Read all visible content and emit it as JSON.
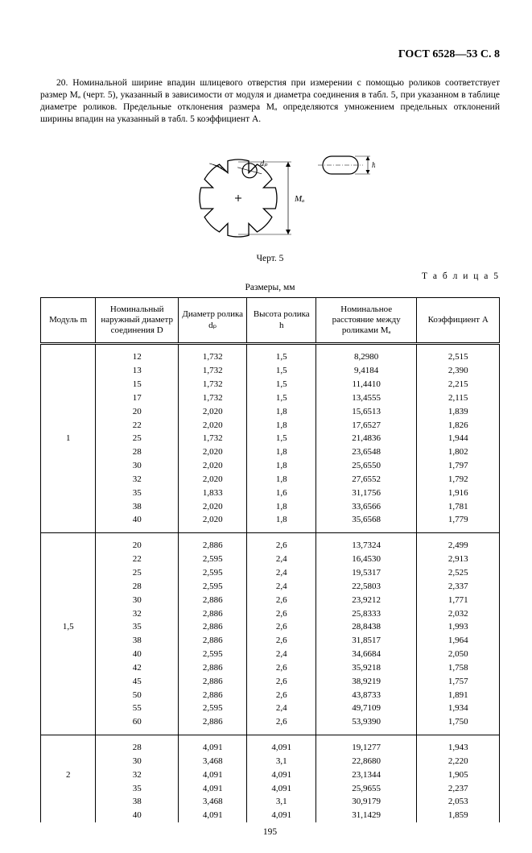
{
  "header": "ГОСТ 6528—53 С. 8",
  "paragraph": "20. Номинальной ширине впадин шлицевого отверстия при измерении с помощью роликов соответствует размер Mₐ (черт. 5), указанный в зависимости от модуля и диаметра соединения в табл. 5, при указанном в таблице диаметре роликов. Предельные отклонения размера Mₐ определяются умножением предельных отклонений ширины впадин на указанный в табл. 5 коэффициент A.",
  "fig_caption": "Черт. 5",
  "table_label": "Т а б л и ц а  5",
  "dim_label": "Размеры, мм",
  "page_number": "195",
  "table": {
    "columns": [
      "Модуль m",
      "Номинальный наружный диаметр соединения D",
      "Диаметр ролика dₚ",
      "Высота ролика h",
      "Номинальное расстояние между роликами Mₐ",
      "Коэффициент A"
    ],
    "groups": [
      {
        "m": "1",
        "rows": [
          [
            "12",
            "1,732",
            "1,5",
            "8,2980",
            "2,515"
          ],
          [
            "13",
            "1,732",
            "1,5",
            "9,4184",
            "2,390"
          ],
          [
            "15",
            "1,732",
            "1,5",
            "11,4410",
            "2,215"
          ],
          [
            "17",
            "1,732",
            "1,5",
            "13,4555",
            "2,115"
          ],
          [
            "20",
            "2,020",
            "1,8",
            "15,6513",
            "1,839"
          ],
          [
            "22",
            "2,020",
            "1,8",
            "17,6527",
            "1,826"
          ],
          [
            "25",
            "1,732",
            "1,5",
            "21,4836",
            "1,944"
          ],
          [
            "28",
            "2,020",
            "1,8",
            "23,6548",
            "1,802"
          ],
          [
            "30",
            "2,020",
            "1,8",
            "25,6550",
            "1,797"
          ],
          [
            "32",
            "2,020",
            "1,8",
            "27,6552",
            "1,792"
          ],
          [
            "35",
            "1,833",
            "1,6",
            "31,1756",
            "1,916"
          ],
          [
            "38",
            "2,020",
            "1,8",
            "33,6566",
            "1,781"
          ],
          [
            "40",
            "2,020",
            "1,8",
            "35,6568",
            "1,779"
          ]
        ]
      },
      {
        "m": "1,5",
        "rows": [
          [
            "20",
            "2,886",
            "2,6",
            "13,7324",
            "2,499"
          ],
          [
            "22",
            "2,595",
            "2,4",
            "16,4530",
            "2,913"
          ],
          [
            "25",
            "2,595",
            "2,4",
            "19,5317",
            "2,525"
          ],
          [
            "28",
            "2,595",
            "2,4",
            "22,5803",
            "2,337"
          ],
          [
            "30",
            "2,886",
            "2,6",
            "23,9212",
            "1,771"
          ],
          [
            "32",
            "2,886",
            "2,6",
            "25,8333",
            "2,032"
          ],
          [
            "35",
            "2,886",
            "2,6",
            "28,8438",
            "1,993"
          ],
          [
            "38",
            "2,886",
            "2,6",
            "31,8517",
            "1,964"
          ],
          [
            "40",
            "2,595",
            "2,4",
            "34,6684",
            "2,050"
          ],
          [
            "42",
            "2,886",
            "2,6",
            "35,9218",
            "1,758"
          ],
          [
            "45",
            "2,886",
            "2,6",
            "38,9219",
            "1,757"
          ],
          [
            "50",
            "2,886",
            "2,6",
            "43,8733",
            "1,891"
          ],
          [
            "55",
            "2,595",
            "2,4",
            "49,7109",
            "1,934"
          ],
          [
            "60",
            "2,886",
            "2,6",
            "53,9390",
            "1,750"
          ]
        ]
      },
      {
        "m": "2",
        "rows": [
          [
            "28",
            "4,091",
            "4,091",
            "19,1277",
            "1,943"
          ],
          [
            "30",
            "3,468",
            "3,1",
            "22,8680",
            "2,220"
          ],
          [
            "32",
            "4,091",
            "4,091",
            "23,1344",
            "1,905"
          ],
          [
            "35",
            "4,091",
            "4,091",
            "25,9655",
            "2,237"
          ],
          [
            "38",
            "3,468",
            "3,1",
            "30,9179",
            "2,053"
          ],
          [
            "40",
            "4,091",
            "4,091",
            "31,1429",
            "1,859"
          ]
        ]
      }
    ]
  },
  "diagram": {
    "teeth": 8,
    "outer_r": 48,
    "root_r": 34,
    "ma_span": 90,
    "roller_r": 9,
    "detail_w": 44,
    "detail_h": 22
  }
}
